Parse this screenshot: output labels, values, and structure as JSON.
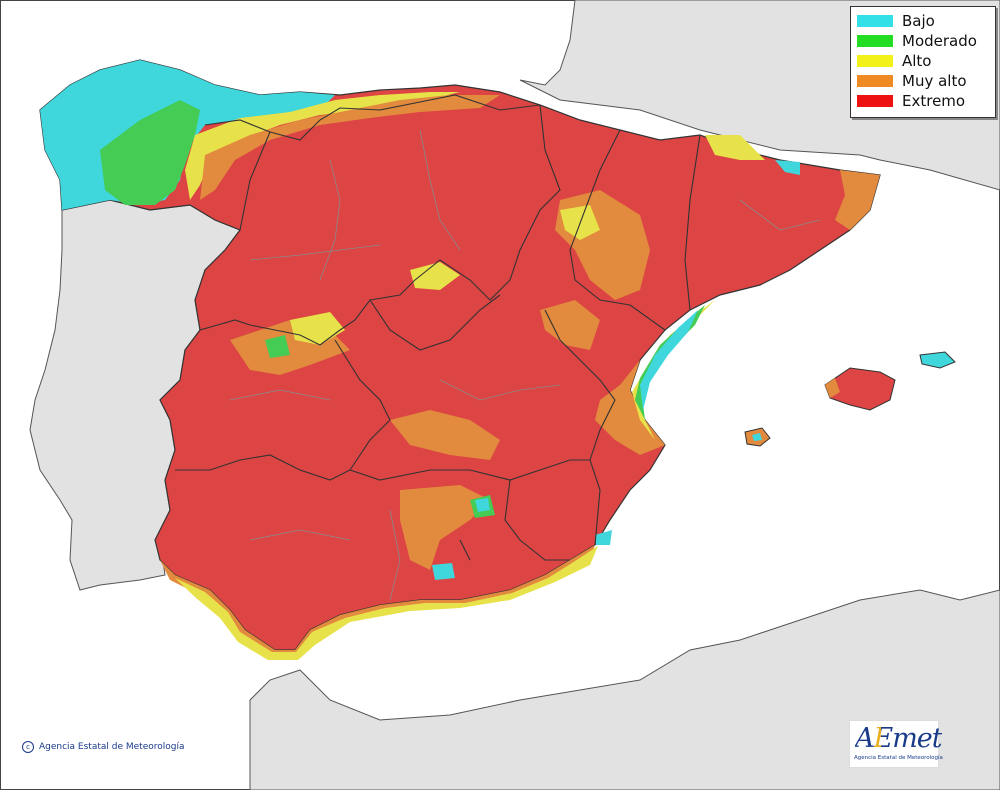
{
  "legend": {
    "items": [
      {
        "label": "Bajo",
        "color": "#33e0e8"
      },
      {
        "label": "Moderado",
        "color": "#22dd22"
      },
      {
        "label": "Alto",
        "color": "#f2f21a"
      },
      {
        "label": "Muy alto",
        "color": "#ef8a22"
      },
      {
        "label": "Extremo",
        "color": "#ee1111"
      }
    ]
  },
  "colors": {
    "sea": "#ffffff",
    "land_other": "#e2e2e2",
    "bajo": "#3fd6dc",
    "moderado": "#44cc55",
    "alto": "#e8e24a",
    "muy_alto": "#e28a3e",
    "extremo": "#dd4444",
    "border": "#333333",
    "province_border": "#8a8a8a"
  },
  "footer": {
    "copyright_symbol": "c",
    "copyright": "Agencia Estatal de Meteorología"
  },
  "logo": {
    "text": "AEmet",
    "subtitle": "Agencia Estatal de Meteorología"
  }
}
